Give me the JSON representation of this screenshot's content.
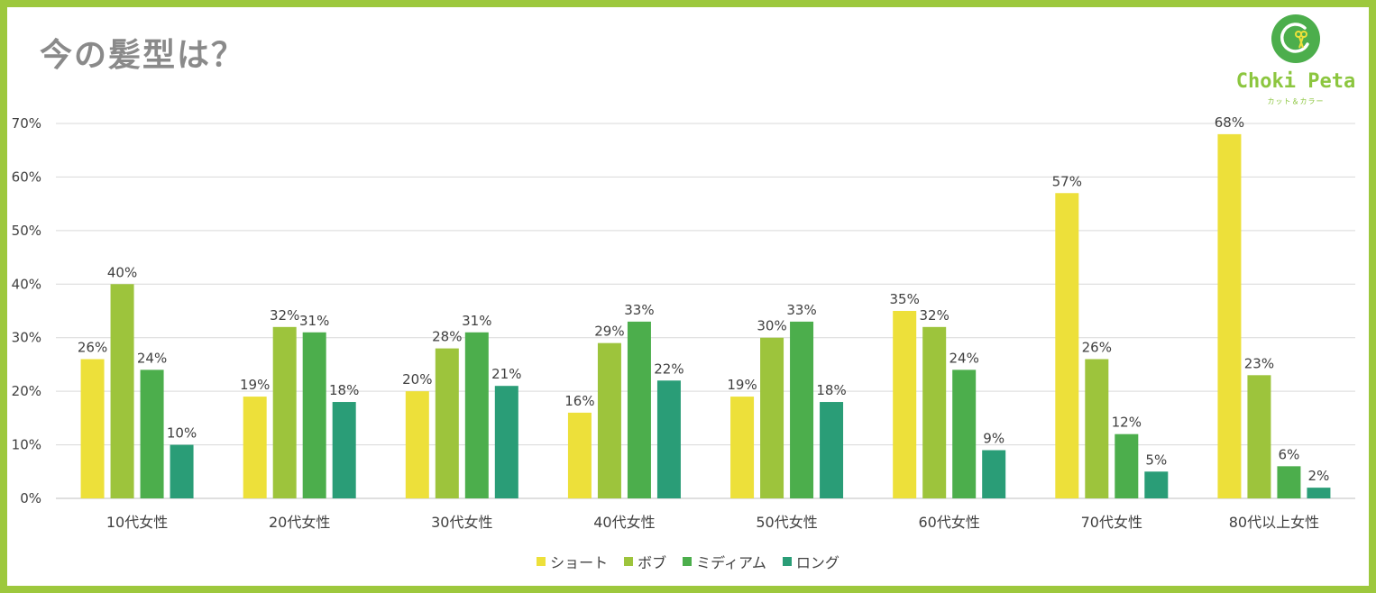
{
  "title": "今の髪型は？",
  "logo": {
    "name": "Choki Peta",
    "tagline": "カット＆カラー",
    "icon": "scissors-leaf-icon",
    "color": "#8cc63f"
  },
  "chart_data": {
    "type": "bar",
    "title": "今の髪型は？",
    "xlabel": "",
    "ylabel": "",
    "ylim": [
      0,
      70
    ],
    "yticks": [
      "0%",
      "10%",
      "20%",
      "30%",
      "40%",
      "50%",
      "60%",
      "70%"
    ],
    "grid": true,
    "legend_position": "bottom",
    "categories": [
      "10代女性",
      "20代女性",
      "30代女性",
      "40代女性",
      "50代女性",
      "60代女性",
      "70代女性",
      "80代以上女性"
    ],
    "series": [
      {
        "name": "ショート",
        "color": "#ede03a",
        "values": [
          26,
          19,
          20,
          16,
          19,
          35,
          57,
          68
        ],
        "labels": [
          "26%",
          "19%",
          "20%",
          "16%",
          "19%",
          "35%",
          "57%",
          "68%"
        ]
      },
      {
        "name": "ボブ",
        "color": "#9dc43c",
        "values": [
          40,
          32,
          28,
          29,
          30,
          32,
          26,
          23
        ],
        "labels": [
          "40%",
          "32%",
          "28%",
          "29%",
          "30%",
          "32%",
          "26%",
          "23%"
        ]
      },
      {
        "name": "ミディアム",
        "color": "#4cae4c",
        "values": [
          24,
          31,
          31,
          33,
          33,
          24,
          12,
          6
        ],
        "labels": [
          "24%",
          "31%",
          "31%",
          "33%",
          "33%",
          "24%",
          "12%",
          "6%"
        ]
      },
      {
        "name": "ロング",
        "color": "#2a9d77",
        "values": [
          10,
          18,
          21,
          22,
          18,
          9,
          5,
          2
        ],
        "labels": [
          "10%",
          "18%",
          "21%",
          "22%",
          "18%",
          "9%",
          "5%",
          "2%"
        ]
      }
    ]
  }
}
